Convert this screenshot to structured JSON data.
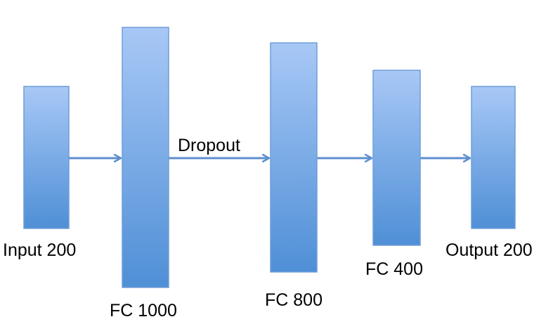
{
  "layers": [
    {
      "id": "input",
      "label": "Input 200"
    },
    {
      "id": "fc1000",
      "label": "FC 1000"
    },
    {
      "id": "fc800",
      "label": "FC 800"
    },
    {
      "id": "fc400",
      "label": "FC 400"
    },
    {
      "id": "output",
      "label": "Output 200"
    }
  ],
  "edges": [
    {
      "from": "input",
      "to": "fc1000",
      "label": ""
    },
    {
      "from": "fc1000",
      "to": "fc800",
      "label": "Dropout"
    },
    {
      "from": "fc800",
      "to": "fc400",
      "label": ""
    },
    {
      "from": "fc400",
      "to": "output",
      "label": ""
    }
  ],
  "colors": {
    "box_top": "#a8c8f6",
    "box_bottom": "#4f8fd6",
    "box_stroke": "#6f9ed8",
    "arrow": "#5e8fcf",
    "text": "#000000"
  }
}
